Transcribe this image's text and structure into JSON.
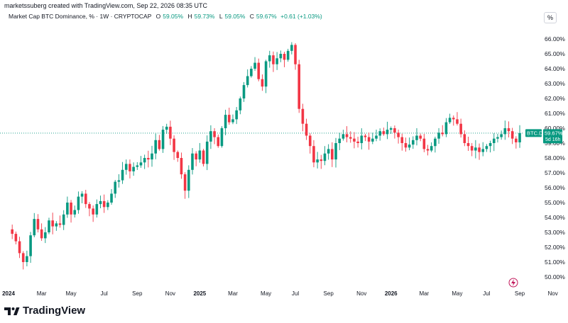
{
  "header": {
    "creator": "marketssuberg created with TradingView.com, Sep 22, 2026 08:35 UTC",
    "symbol": "Market Cap BTC Dominance, % · 1W · CRYPTOCAP",
    "open_label": "O",
    "open": "59.05%",
    "high_label": "H",
    "high": "59.73%",
    "low_label": "L",
    "low": "59.05%",
    "close_label": "C",
    "close": "59.67%",
    "change": "+0.61 (+1.03%)",
    "pct_badge": "%"
  },
  "price_tag": {
    "symbol": "BTC.D",
    "price": "59.67%",
    "countdown": "5d 16h"
  },
  "footer": {
    "logo_text": "TradingView",
    "flash_icon": "lightning-icon"
  },
  "colors": {
    "up": "#089981",
    "down": "#f23645",
    "text": "#131722",
    "grid_line": "#089981"
  },
  "chart_data": {
    "type": "candlestick",
    "title": "Market Cap BTC Dominance, % · 1W · CRYPTOCAP",
    "xlabel": "",
    "ylabel": "",
    "ylim": [
      49.5,
      66.5
    ],
    "y_ticks": [
      "50.00%",
      "51.00%",
      "52.00%",
      "53.00%",
      "54.00%",
      "55.00%",
      "56.00%",
      "57.00%",
      "58.00%",
      "59.00%",
      "60.00%",
      "61.00%",
      "62.00%",
      "63.00%",
      "64.00%",
      "65.00%",
      "66.00%"
    ],
    "x_ticks": [
      {
        "label": "2024",
        "bold": true,
        "week": 0
      },
      {
        "label": "Mar",
        "week": 9
      },
      {
        "label": "May",
        "week": 17
      },
      {
        "label": "Jul",
        "week": 26
      },
      {
        "label": "Sep",
        "week": 35
      },
      {
        "label": "Nov",
        "week": 44
      },
      {
        "label": "2025",
        "bold": true,
        "week": 52
      },
      {
        "label": "Mar",
        "week": 61
      },
      {
        "label": "May",
        "week": 70
      },
      {
        "label": "Jul",
        "week": 78
      },
      {
        "label": "Sep",
        "week": 87
      },
      {
        "label": "Nov",
        "week": 96
      },
      {
        "label": "2026",
        "bold": true,
        "week": 104
      },
      {
        "label": "Mar",
        "week": 113
      },
      {
        "label": "May",
        "week": 122
      },
      {
        "label": "Jul",
        "week": 130
      },
      {
        "label": "Sep",
        "week": 139
      },
      {
        "label": "Nov",
        "week": 148
      }
    ],
    "last_price": 59.67,
    "close_path": [
      53.2,
      52.9,
      52.4,
      51.6,
      51.0,
      51.4,
      52.8,
      53.9,
      53.2,
      52.6,
      53.0,
      53.8,
      53.4,
      53.6,
      53.5,
      54.2,
      55.0,
      54.2,
      54.5,
      55.4,
      55.6,
      54.9,
      54.6,
      54.2,
      54.9,
      55.1,
      54.7,
      55.0,
      55.6,
      56.4,
      56.5,
      57.2,
      57.6,
      57.1,
      57.4,
      57.5,
      57.7,
      58.0,
      57.9,
      58.3,
      59.2,
      58.6,
      59.9,
      60.1,
      59.3,
      58.4,
      58.0,
      56.9,
      55.8,
      57.2,
      58.3,
      57.9,
      58.5,
      57.6,
      59.1,
      59.8,
      59.4,
      58.8,
      60.0,
      60.9,
      60.4,
      60.6,
      61.2,
      62.0,
      62.9,
      63.5,
      64.0,
      64.4,
      63.3,
      62.8,
      64.5,
      64.9,
      64.3,
      64.7,
      65.0,
      64.6,
      65.2,
      65.6,
      64.3,
      61.3,
      60.3,
      59.5,
      58.8,
      57.7,
      57.9,
      57.8,
      58.3,
      58.6,
      57.9,
      59.0,
      59.3,
      59.6,
      59.4,
      59.3,
      59.1,
      59.0,
      59.5,
      59.4,
      59.1,
      59.3,
      59.5,
      59.8,
      59.6,
      59.9,
      60.0,
      59.7,
      59.4,
      59.0,
      58.7,
      58.9,
      59.2,
      59.5,
      59.3,
      58.6,
      58.5,
      58.8,
      59.3,
      59.7,
      59.6,
      60.4,
      60.7,
      60.6,
      60.3,
      59.6,
      59.0,
      58.8,
      58.5,
      58.7,
      58.4,
      58.6,
      58.8,
      59.0,
      59.3,
      59.4,
      59.6,
      60.0,
      59.8,
      59.3,
      59.05,
      59.67
    ]
  }
}
